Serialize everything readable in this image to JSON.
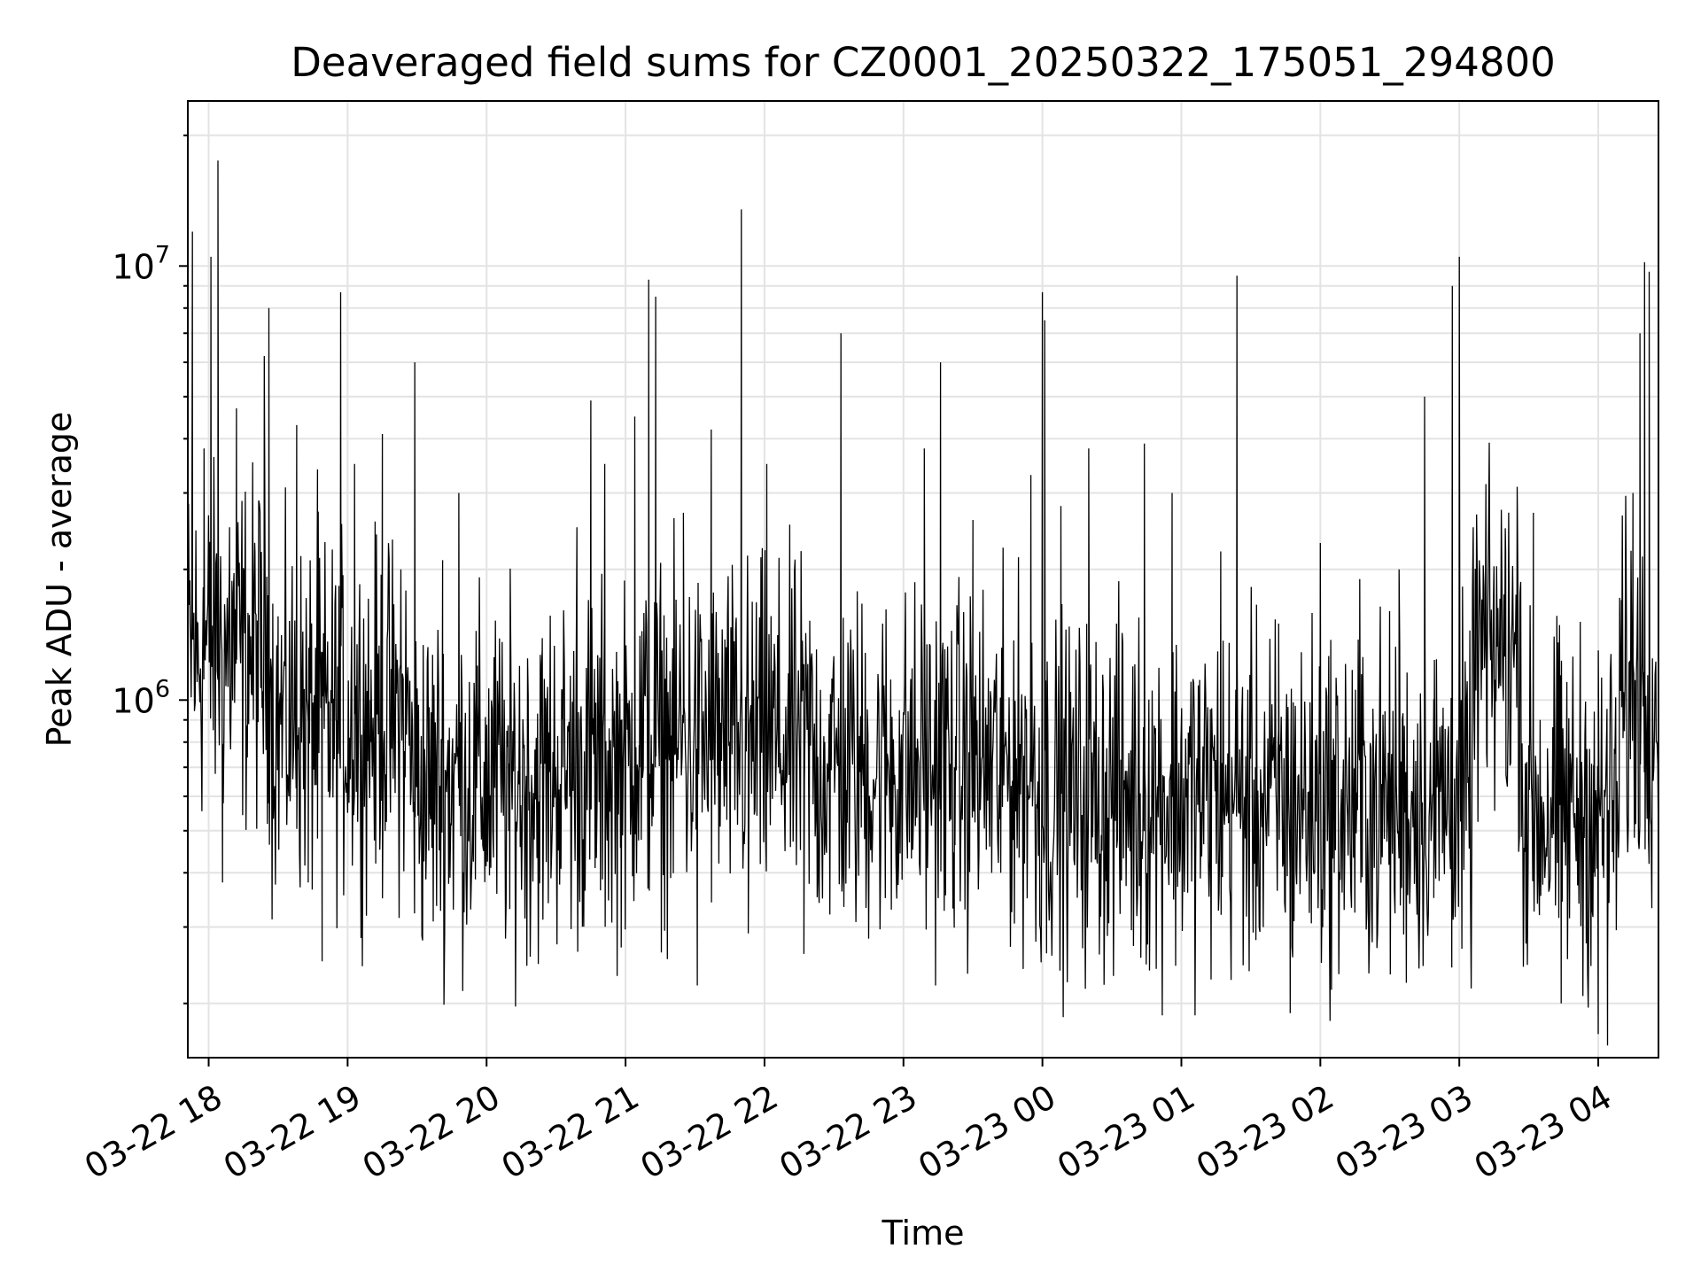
{
  "chart_data": {
    "type": "line",
    "title": "Deaveraged field sums for CZ0001_20250322_175051_294800",
    "xlabel": "Time",
    "ylabel": "Peak ADU - average",
    "yscale": "log",
    "ylim": [
      150000,
      24000000
    ],
    "xlim": [
      "2025-03-22 17:51",
      "2025-03-23 04:26"
    ],
    "grid": true,
    "grid_minor_y": true,
    "line_color": "#000000",
    "x_ticks": [
      {
        "t": "2025-03-22 18:00",
        "label": "03-22 18"
      },
      {
        "t": "2025-03-22 19:00",
        "label": "03-22 19"
      },
      {
        "t": "2025-03-22 20:00",
        "label": "03-22 20"
      },
      {
        "t": "2025-03-22 21:00",
        "label": "03-22 21"
      },
      {
        "t": "2025-03-22 22:00",
        "label": "03-22 22"
      },
      {
        "t": "2025-03-22 23:00",
        "label": "03-22 23"
      },
      {
        "t": "2025-03-23 00:00",
        "label": "03-23 00"
      },
      {
        "t": "2025-03-23 01:00",
        "label": "03-23 01"
      },
      {
        "t": "2025-03-23 02:00",
        "label": "03-23 02"
      },
      {
        "t": "2025-03-23 03:00",
        "label": "03-23 03"
      },
      {
        "t": "2025-03-23 04:00",
        "label": "03-23 04"
      }
    ],
    "y_ticks": [
      {
        "value": 1000000,
        "base": "10",
        "exp": "6"
      },
      {
        "value": 10000000,
        "base": "10",
        "exp": "7"
      }
    ],
    "series": [
      {
        "values": [
          [
            "2025-03-22 17:52",
            1500000
          ],
          [
            "2025-03-22 17:53",
            12000000
          ],
          [
            "2025-03-22 17:55",
            1100000
          ],
          [
            "2025-03-22 17:58",
            3800000
          ],
          [
            "2025-03-22 18:01",
            10500000
          ],
          [
            "2025-03-22 18:02",
            1300000
          ],
          [
            "2025-03-22 18:04",
            17500000
          ],
          [
            "2025-03-22 18:06",
            380000
          ],
          [
            "2025-03-22 18:09",
            2500000
          ],
          [
            "2025-03-22 18:12",
            4700000
          ],
          [
            "2025-03-22 18:16",
            1000000
          ],
          [
            "2025-03-22 18:20",
            2200000
          ],
          [
            "2025-03-22 18:24",
            6200000
          ],
          [
            "2025-03-22 18:26",
            8000000
          ],
          [
            "2025-03-22 18:30",
            1200000
          ],
          [
            "2025-03-22 18:38",
            4300000
          ],
          [
            "2025-03-22 18:43",
            380000
          ],
          [
            "2025-03-22 18:47",
            3400000
          ],
          [
            "2025-03-22 18:49",
            250000
          ],
          [
            "2025-03-22 18:55",
            900000
          ],
          [
            "2025-03-22 18:57",
            8700000
          ],
          [
            "2025-03-22 19:03",
            3500000
          ],
          [
            "2025-03-22 19:10",
            800000
          ],
          [
            "2025-03-22 19:15",
            4100000
          ],
          [
            "2025-03-22 19:23",
            2000000
          ],
          [
            "2025-03-22 19:29",
            6000000
          ],
          [
            "2025-03-22 19:35",
            450000
          ],
          [
            "2025-03-22 19:41",
            2100000
          ],
          [
            "2025-03-22 19:48",
            3000000
          ],
          [
            "2025-03-22 19:56",
            1200000
          ],
          [
            "2025-03-22 20:03",
            900000
          ],
          [
            "2025-03-22 20:10",
            330000
          ],
          [
            "2025-03-22 20:18",
            900000
          ],
          [
            "2025-03-22 20:24",
            1300000
          ],
          [
            "2025-03-22 20:33",
            700000
          ],
          [
            "2025-03-22 20:39",
            2500000
          ],
          [
            "2025-03-22 20:45",
            4900000
          ],
          [
            "2025-03-22 20:51",
            3500000
          ],
          [
            "2025-03-22 20:58",
            900000
          ],
          [
            "2025-03-22 21:04",
            4500000
          ],
          [
            "2025-03-22 21:06",
            700000
          ],
          [
            "2025-03-22 21:10",
            9300000
          ],
          [
            "2025-03-22 21:13",
            8500000
          ],
          [
            "2025-03-22 21:20",
            650000
          ],
          [
            "2025-03-22 21:25",
            2700000
          ],
          [
            "2025-03-22 21:31",
            220000
          ],
          [
            "2025-03-22 21:37",
            4200000
          ],
          [
            "2025-03-22 21:46",
            750000
          ],
          [
            "2025-03-22 21:50",
            13500000
          ],
          [
            "2025-03-22 21:53",
            290000
          ],
          [
            "2025-03-22 22:01",
            3500000
          ],
          [
            "2025-03-22 22:11",
            1200000
          ],
          [
            "2025-03-22 22:17",
            260000
          ],
          [
            "2025-03-22 22:26",
            800000
          ],
          [
            "2025-03-22 22:33",
            7000000
          ],
          [
            "2025-03-22 22:40",
            650000
          ],
          [
            "2025-03-22 22:51",
            1500000
          ],
          [
            "2025-03-22 23:09",
            3800000
          ],
          [
            "2025-03-22 23:16",
            6000000
          ],
          [
            "2025-03-22 23:22",
            700000
          ],
          [
            "2025-03-22 23:30",
            2600000
          ],
          [
            "2025-03-22 23:42",
            400000
          ],
          [
            "2025-03-22 23:55",
            3300000
          ],
          [
            "2025-03-23 00:00",
            8700000
          ],
          [
            "2025-03-23 00:01",
            7500000
          ],
          [
            "2025-03-23 00:08",
            2800000
          ],
          [
            "2025-03-23 00:20",
            3800000
          ],
          [
            "2025-03-23 00:32",
            1500000
          ],
          [
            "2025-03-23 00:44",
            3900000
          ],
          [
            "2025-03-23 00:56",
            3000000
          ],
          [
            "2025-03-23 01:07",
            650000
          ],
          [
            "2025-03-23 01:17",
            2200000
          ],
          [
            "2025-03-23 01:24",
            9500000
          ],
          [
            "2025-03-23 01:32",
            700000
          ],
          [
            "2025-03-23 01:42",
            1500000
          ],
          [
            "2025-03-23 01:47",
            190000
          ],
          [
            "2025-03-23 02:00",
            2300000
          ],
          [
            "2025-03-23 02:06",
            400000
          ],
          [
            "2025-03-23 02:17",
            1900000
          ],
          [
            "2025-03-23 02:34",
            2000000
          ],
          [
            "2025-03-23 02:43",
            480000
          ],
          [
            "2025-03-23 02:45",
            5000000
          ],
          [
            "2025-03-23 02:49",
            350000
          ],
          [
            "2025-03-23 02:57",
            9000000
          ],
          [
            "2025-03-23 03:00",
            10500000
          ],
          [
            "2025-03-23 03:03",
            500000
          ],
          [
            "2025-03-23 03:12",
            700000
          ],
          [
            "2025-03-23 03:20",
            2200000
          ],
          [
            "2025-03-23 03:25",
            3100000
          ],
          [
            "2025-03-23 03:32",
            2700000
          ],
          [
            "2025-03-23 03:38",
            500000
          ],
          [
            "2025-03-23 03:44",
            200000
          ],
          [
            "2025-03-23 03:52",
            650000
          ],
          [
            "2025-03-23 03:58",
            400000
          ],
          [
            "2025-03-23 04:00",
            170000
          ],
          [
            "2025-03-23 04:04",
            160000
          ],
          [
            "2025-03-23 04:10",
            1700000
          ],
          [
            "2025-03-23 04:15",
            3000000
          ],
          [
            "2025-03-23 04:18",
            7000000
          ],
          [
            "2025-03-23 04:20",
            10200000
          ],
          [
            "2025-03-23 04:22",
            9700000
          ],
          [
            "2025-03-23 04:25",
            800000
          ]
        ]
      }
    ]
  }
}
